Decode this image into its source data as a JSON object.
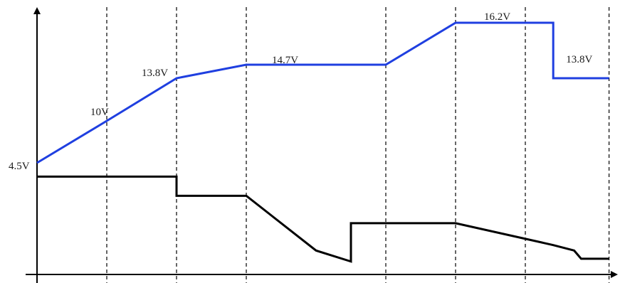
{
  "chart_data": {
    "type": "line",
    "title": "",
    "xlabel": "",
    "ylabel": "",
    "grid": false,
    "x_range": [
      0,
      9
    ],
    "y_range": [
      0,
      18
    ],
    "stage_boundaries": [
      1,
      2,
      3,
      5,
      6,
      7,
      8.2
    ],
    "colors": {
      "voltage": "#1f3fe0",
      "current": "#000000",
      "axis": "#000000",
      "divider": "#000000"
    },
    "series": [
      {
        "points": [
          [
            0,
            4.5
          ],
          [
            1,
            10
          ],
          [
            2,
            13.8
          ],
          [
            3,
            14.7
          ],
          [
            5,
            14.7
          ],
          [
            6,
            16.2
          ],
          [
            7.4,
            16.2
          ],
          [
            7.4,
            13.8
          ],
          [
            8.2,
            13.8
          ]
        ]
      },
      {
        "points": [
          [
            0,
            3.6
          ],
          [
            2,
            3.6
          ],
          [
            2,
            2.9
          ],
          [
            3,
            2.9
          ],
          [
            4,
            0.9
          ],
          [
            4.5,
            0.5
          ],
          [
            4.5,
            1.9
          ],
          [
            5,
            1.9
          ],
          [
            6,
            1.9
          ],
          [
            7.4,
            1.1
          ],
          [
            7.7,
            0.9
          ],
          [
            7.8,
            0.6
          ],
          [
            8.2,
            0.6
          ]
        ]
      }
    ],
    "annotations": [
      {
        "text": "4.5V",
        "x": 0,
        "y": 4.5
      },
      {
        "text": "10V",
        "x": 1,
        "y": 10
      },
      {
        "text": "13.8V",
        "x": 2,
        "y": 13.8
      },
      {
        "text": "14.7V",
        "x": 3,
        "y": 14.7
      },
      {
        "text": "16.2V",
        "x": 6,
        "y": 16.2
      },
      {
        "text": "13.8V",
        "x": 7.4,
        "y": 13.8
      }
    ]
  }
}
